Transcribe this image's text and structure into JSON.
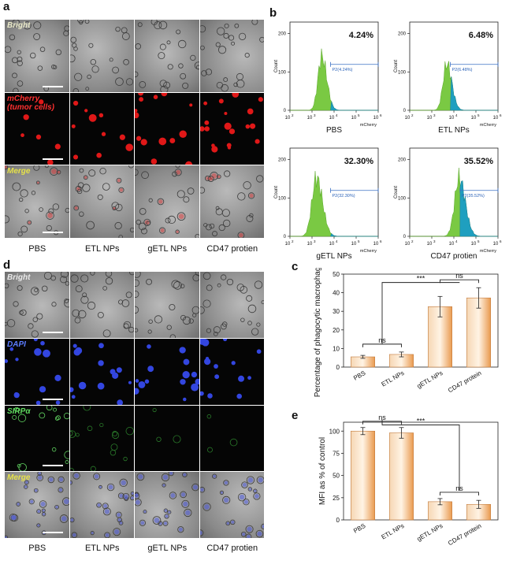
{
  "panels": {
    "a": "a",
    "b": "b",
    "c": "c",
    "d": "d",
    "e": "e"
  },
  "conditions": [
    "PBS",
    "ETL NPs",
    "gETL NPs",
    "CD47 protien"
  ],
  "panel_a": {
    "channels": [
      {
        "label": "Bright",
        "color": "#e9e9c8"
      },
      {
        "label": "mCherry\n(tumor cells)",
        "color": "#ff3030"
      },
      {
        "label": "Merge",
        "color": "#e6e24a"
      }
    ]
  },
  "panel_d": {
    "channels": [
      {
        "label": "Bright",
        "color": "#e9e9e9"
      },
      {
        "label": "DAPI",
        "color": "#5c7cff"
      },
      {
        "label": "SIRPα",
        "color": "#5fdc5f"
      },
      {
        "label": "Merge",
        "color": "#e6e24a"
      }
    ]
  },
  "panel_b": {
    "histograms": [
      {
        "name": "PBS",
        "percent": "4.24%",
        "gate": "P2(4.24%)"
      },
      {
        "name": "ETL NPs",
        "percent": "6.48%",
        "gate": "P2(6.48%)"
      },
      {
        "name": "gETL NPs",
        "percent": "32.30%",
        "gate": "P2(32.30%)"
      },
      {
        "name": "CD47 protien",
        "percent": "35.52%",
        "gate": "P2(35.52%)"
      }
    ],
    "ylabel": "Count",
    "xlabel": "mCherry",
    "x_ticks": [
      "10",
      "10",
      "10",
      "10",
      "10"
    ],
    "x_exponents": [
      "2",
      "3",
      "4",
      "5",
      "6"
    ],
    "y_ticks": [
      "0",
      "100",
      "200"
    ]
  },
  "chart_data": [
    {
      "type": "bar",
      "title": "",
      "categories": [
        "PBS",
        "ETL NPs",
        "gETL NPs",
        "CD47 protein"
      ],
      "values": [
        5.5,
        6.8,
        32.5,
        37.2
      ],
      "errors": [
        0.8,
        1.3,
        5.5,
        5.5
      ],
      "ylabel": "Percentage of phagocytic macrophages (%)",
      "ylim": [
        0,
        50
      ],
      "yticks": [
        0,
        10,
        20,
        30,
        40,
        50
      ],
      "significance": [
        {
          "groups": [
            0,
            1
          ],
          "label": "ns"
        },
        {
          "groups": [
            2,
            3
          ],
          "label": "ns"
        },
        {
          "groups": [
            0,
            2
          ],
          "label": "***"
        }
      ]
    },
    {
      "type": "bar",
      "title": "",
      "categories": [
        "PBS",
        "ETL NPs",
        "gETL NPs",
        "CD47 protein"
      ],
      "values": [
        100,
        98,
        20.5,
        17.5
      ],
      "errors": [
        4,
        6,
        3.5,
        4.5
      ],
      "ylabel": "MFI as % of control",
      "ylim": [
        0,
        110
      ],
      "yticks": [
        0,
        25,
        50,
        75,
        100
      ],
      "significance": [
        {
          "groups": [
            0,
            1
          ],
          "label": "ns"
        },
        {
          "groups": [
            2,
            3
          ],
          "label": "ns"
        },
        {
          "groups": [
            0,
            2
          ],
          "label": "***"
        }
      ]
    }
  ]
}
